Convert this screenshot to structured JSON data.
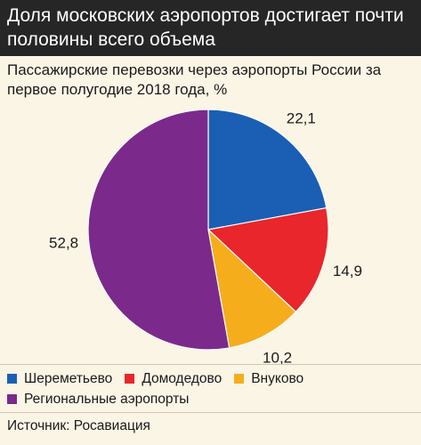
{
  "header": {
    "title": "Доля московских аэропортов достигает почти половины всего объема"
  },
  "chart_data": {
    "type": "pie",
    "title": "Пассажирские перевозки через аэропорты России за первое полугодие 2018 года, %",
    "start_angle_deg": 0,
    "direction": "clockwise",
    "slices": [
      {
        "label": "Шереметьево",
        "value": 22.1,
        "display": "22,1",
        "color": "#1a5fb4"
      },
      {
        "label": "Домодедово",
        "value": 14.9,
        "display": "14,9",
        "color": "#e8262b"
      },
      {
        "label": "Внуково",
        "value": 10.2,
        "display": "10,2",
        "color": "#f6ad1c"
      },
      {
        "label": "Региональные аэропорты",
        "value": 52.8,
        "display": "52,8",
        "color": "#7b2a8b"
      }
    ],
    "legend_position": "bottom"
  },
  "legend": {
    "items": [
      {
        "label": "Шереметьево",
        "color": "#1a5fb4"
      },
      {
        "label": "Домодедово",
        "color": "#e8262b"
      },
      {
        "label": "Внуково",
        "color": "#f6ad1c"
      },
      {
        "label": "Региональные аэропорты",
        "color": "#7b2a8b"
      }
    ]
  },
  "source": "Источник: Росавиация"
}
